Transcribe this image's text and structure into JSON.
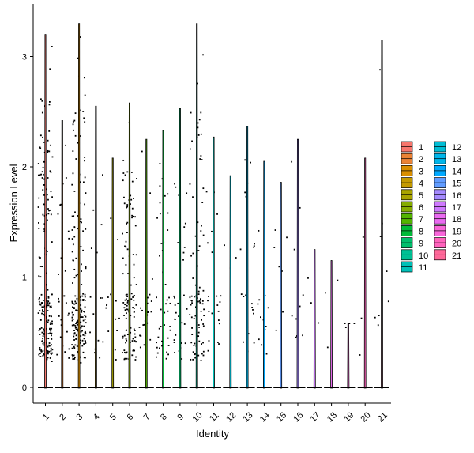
{
  "chart_data": {
    "type": "violin",
    "title": "",
    "xlabel": "Identity",
    "ylabel": "Expression Level",
    "ylim": [
      -0.15,
      3.45
    ],
    "yticks": [
      0,
      1,
      2,
      3
    ],
    "categories": [
      "1",
      "2",
      "3",
      "4",
      "5",
      "6",
      "7",
      "8",
      "9",
      "10",
      "11",
      "12",
      "13",
      "14",
      "15",
      "16",
      "17",
      "18",
      "19",
      "20",
      "21"
    ],
    "max_values": [
      3.2,
      2.42,
      3.3,
      2.55,
      2.08,
      2.58,
      2.25,
      2.33,
      2.53,
      3.3,
      2.27,
      1.92,
      2.37,
      2.05,
      1.86,
      2.25,
      1.25,
      1.15,
      0.58,
      2.08,
      3.15
    ],
    "point_density": [
      200,
      30,
      200,
      15,
      14,
      120,
      25,
      45,
      35,
      90,
      22,
      5,
      22,
      12,
      7,
      10,
      4,
      3,
      5,
      4,
      8
    ],
    "median_expression": [
      0,
      0,
      0,
      0,
      0,
      0,
      0,
      0,
      0,
      0,
      0,
      0,
      0,
      0,
      0,
      0,
      0,
      0,
      0,
      0,
      0
    ],
    "legend": {
      "placement": "right",
      "entries": [
        {
          "label": "1",
          "color": "#F8766D"
        },
        {
          "label": "2",
          "color": "#EB8335"
        },
        {
          "label": "3",
          "color": "#DA8F00"
        },
        {
          "label": "4",
          "color": "#C49A00"
        },
        {
          "label": "5",
          "color": "#A9A400"
        },
        {
          "label": "6",
          "color": "#86AC00"
        },
        {
          "label": "7",
          "color": "#53B400"
        },
        {
          "label": "8",
          "color": "#00BA38"
        },
        {
          "label": "9",
          "color": "#00BE6C"
        },
        {
          "label": "10",
          "color": "#00C094"
        },
        {
          "label": "11",
          "color": "#00C0B8"
        },
        {
          "label": "12",
          "color": "#00BDD4"
        },
        {
          "label": "13",
          "color": "#00B6EB"
        },
        {
          "label": "14",
          "color": "#00A9FF"
        },
        {
          "label": "15",
          "color": "#619CFF"
        },
        {
          "label": "16",
          "color": "#A58AFF"
        },
        {
          "label": "17",
          "color": "#CF78FF"
        },
        {
          "label": "18",
          "color": "#EA6AF1"
        },
        {
          "label": "19",
          "color": "#F966DA"
        },
        {
          "label": "20",
          "color": "#FF62BC"
        },
        {
          "label": "21",
          "color": "#FF6899"
        }
      ]
    }
  }
}
